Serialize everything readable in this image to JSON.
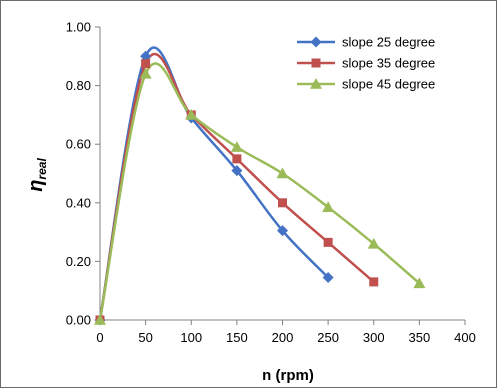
{
  "chart_data": {
    "type": "line",
    "xlabel": "n  (rpm)",
    "ylabel_main": "η",
    "ylabel_sub": "real",
    "xlim": [
      0,
      400
    ],
    "ylim": [
      0,
      1
    ],
    "x_ticks": [
      "0",
      "50",
      "100",
      "150",
      "200",
      "250",
      "300",
      "350",
      "400"
    ],
    "y_ticks": [
      "0.00",
      "0.20",
      "0.40",
      "0.60",
      "0.80",
      "1.00"
    ],
    "grid": false,
    "legend_position": "top-right",
    "series": [
      {
        "name": "slope 25 degree",
        "color": "#4472c4",
        "marker": "diamond",
        "x": [
          0,
          50,
          100,
          150,
          200,
          250
        ],
        "y": [
          0.0,
          0.9,
          0.69,
          0.51,
          0.305,
          0.145
        ]
      },
      {
        "name": "slope 35 degree",
        "color": "#c0504d",
        "marker": "square",
        "x": [
          0,
          50,
          100,
          150,
          200,
          250,
          300
        ],
        "y": [
          0.0,
          0.875,
          0.7,
          0.55,
          0.4,
          0.265,
          0.13
        ]
      },
      {
        "name": "slope 45 degree",
        "color": "#9bbb59",
        "marker": "triangle",
        "x": [
          0,
          50,
          100,
          150,
          200,
          250,
          300,
          350
        ],
        "y": [
          0.0,
          0.84,
          0.7,
          0.59,
          0.5,
          0.385,
          0.26,
          0.125
        ]
      }
    ]
  }
}
